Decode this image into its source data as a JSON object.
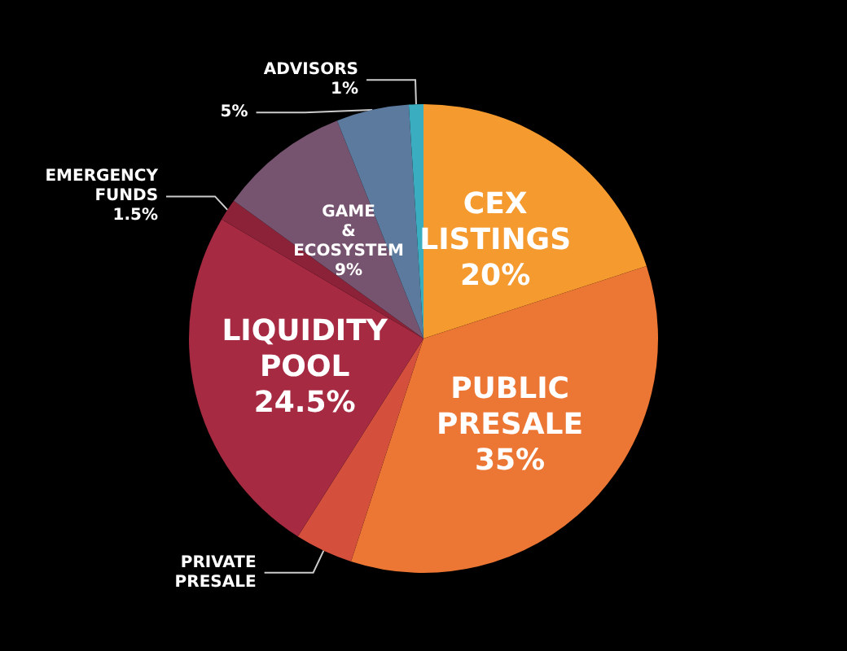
{
  "chart_data": {
    "type": "pie",
    "categories": [
      "CEX LISTINGS",
      "PUBLIC PRESALE",
      "PRIVATE PRESALE",
      "LIQUIDITY POOL",
      "EMERGENCY FUNDS",
      "GAME & ECOSYSTEM",
      null,
      "ADVISORS"
    ],
    "values": [
      20,
      35,
      4,
      24.5,
      1.5,
      9,
      5,
      1
    ],
    "value_labels": [
      "20%",
      "35%",
      null,
      "24.5%",
      "1.5%",
      "9%",
      "5%",
      "1%"
    ],
    "colors": [
      "#f59a2e",
      "#ec7634",
      "#d4503c",
      "#a62a42",
      "#8c2238",
      "#76546f",
      "#5b7a9e",
      "#3aaec0"
    ]
  }
}
